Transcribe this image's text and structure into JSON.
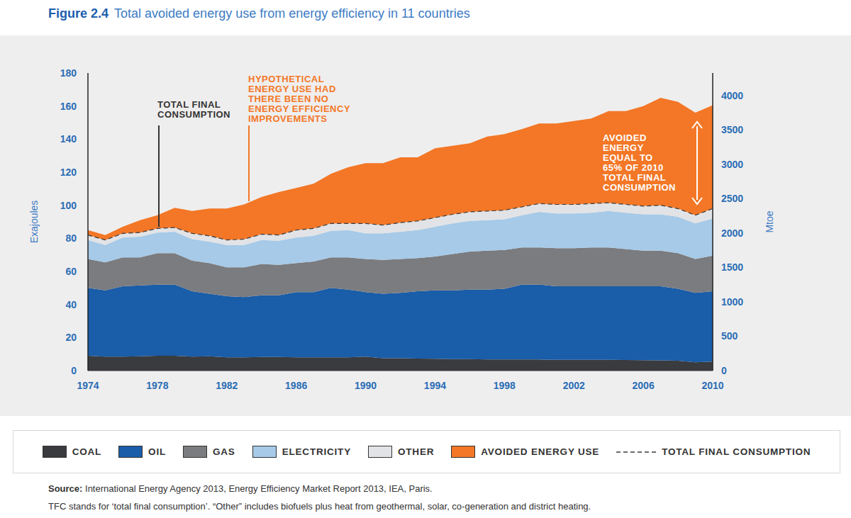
{
  "chart_data": {
    "type": "area",
    "stacked": true,
    "title": "Figure 2.4",
    "subtitle": "Total avoided energy use from energy efficiency in 11 countries",
    "x": [
      1974,
      1975,
      1976,
      1977,
      1978,
      1979,
      1980,
      1981,
      1982,
      1983,
      1984,
      1985,
      1986,
      1987,
      1988,
      1989,
      1990,
      1991,
      1992,
      1993,
      1994,
      1995,
      1996,
      1997,
      1998,
      1999,
      2000,
      2001,
      2002,
      2003,
      2004,
      2005,
      2006,
      2007,
      2008,
      2009,
      2010
    ],
    "xlim": [
      1974,
      2010
    ],
    "xticks": [
      1974,
      1978,
      1982,
      1986,
      1990,
      1994,
      1998,
      2002,
      2006,
      2010
    ],
    "ylabel": "Exajoules",
    "ylim": [
      0,
      180
    ],
    "yticks": [
      0,
      20,
      40,
      60,
      80,
      100,
      120,
      140,
      160,
      180
    ],
    "y2label": "Mtoe",
    "y2lim": [
      0,
      4330
    ],
    "y2ticks": [
      0,
      500,
      1000,
      1500,
      2000,
      2500,
      3000,
      3500,
      4000
    ],
    "grid": false,
    "legend": "bottom",
    "series": [
      {
        "name": "COAL",
        "type": "area",
        "color": "#3a3b3f",
        "values": [
          9,
          8.5,
          8.5,
          8.7,
          9,
          9,
          8.5,
          8.7,
          8,
          8,
          8.2,
          8.2,
          8,
          8,
          8,
          8,
          8.5,
          7.5,
          7.5,
          7.3,
          7.2,
          7,
          7,
          6.8,
          6.7,
          6.7,
          6.7,
          6.5,
          6.5,
          6.5,
          6.5,
          6.4,
          6.3,
          6.2,
          6,
          5,
          5.5
        ]
      },
      {
        "name": "OIL",
        "type": "area",
        "color": "#1a5da8",
        "values": [
          41,
          40,
          42.5,
          42.8,
          43,
          43,
          39.5,
          37.8,
          37,
          36.5,
          37.3,
          37.3,
          39.5,
          39.5,
          42,
          41,
          39,
          39,
          39.5,
          40.7,
          41.3,
          41.5,
          42,
          42.2,
          42.8,
          45.3,
          45.3,
          44.5,
          44.5,
          44.5,
          44.5,
          44.6,
          44.7,
          44.8,
          43.5,
          42,
          42.5
        ]
      },
      {
        "name": "GAS",
        "type": "area",
        "color": "#7b7c80",
        "values": [
          17.5,
          17,
          17.5,
          17,
          19,
          19,
          18.5,
          18.5,
          17.5,
          18,
          19,
          18.5,
          17.5,
          18.5,
          18.5,
          19.5,
          20,
          20.5,
          20.5,
          20,
          20.5,
          22,
          23,
          23.5,
          23.5,
          22.5,
          22.5,
          23,
          23,
          23.5,
          23.5,
          22.5,
          21.5,
          21.5,
          21.5,
          20.5,
          21.5
        ]
      },
      {
        "name": "ELECTRICITY",
        "type": "area",
        "color": "#a6cae8",
        "values": [
          11.5,
          10.5,
          12,
          12.5,
          12.5,
          13,
          13,
          13,
          13.5,
          13.5,
          14.5,
          14.5,
          15.5,
          15.5,
          16,
          16.5,
          15.5,
          16,
          16.5,
          17,
          18,
          18.5,
          18.5,
          18.5,
          18.5,
          19.5,
          21.5,
          21,
          21,
          21,
          22,
          22,
          22,
          22,
          22,
          21.5,
          22.5
        ]
      },
      {
        "name": "OTHER",
        "type": "area",
        "color": "#e2e3e6",
        "values": [
          3,
          3,
          2.5,
          2.5,
          2.5,
          2.5,
          3.5,
          3.5,
          3,
          3.5,
          3.5,
          3.5,
          4.5,
          4.5,
          4.5,
          4,
          6,
          5,
          5.5,
          5.5,
          5.5,
          5.5,
          5.5,
          5.5,
          5.5,
          5,
          5,
          5.5,
          5.5,
          5.5,
          5,
          5,
          5,
          5.5,
          5,
          5,
          6
        ]
      },
      {
        "name": "AVOIDED ENERGY USE",
        "type": "area",
        "color": "#f37726",
        "values": [
          3,
          3,
          4,
          7.5,
          8,
          12,
          13.5,
          16.5,
          19,
          21,
          22.5,
          26,
          25.5,
          27,
          30,
          34,
          36.5,
          37.5,
          39.5,
          38.5,
          42,
          41.5,
          41.5,
          45,
          46,
          47,
          48.5,
          49,
          50.5,
          51.5,
          55.5,
          56.5,
          60.5,
          65,
          64.5,
          62,
          62.5
        ]
      },
      {
        "name": "TOTAL FINAL CONSUMPTION",
        "type": "line",
        "line_style": "dashed",
        "color": "#3a3b3f",
        "values": [
          82,
          79,
          83,
          83.5,
          86,
          86.5,
          83,
          81.5,
          79,
          79.5,
          82.5,
          82,
          85,
          86,
          89,
          89,
          89,
          88,
          89.5,
          90.5,
          92.5,
          94.5,
          96,
          96.5,
          97,
          99,
          101,
          100.5,
          100.5,
          101,
          101.5,
          100.5,
          99.5,
          100,
          98,
          94,
          98
        ]
      }
    ],
    "annotations": [
      {
        "text": "TOTAL FINAL CONSUMPTION",
        "color": "#333333"
      },
      {
        "text": "HYPOTHETICAL ENERGY USE HAD THERE BEEN NO ENERGY EFFICIENCY IMPROVEMENTS",
        "color": "#f37726"
      },
      {
        "text": "AVOIDED ENERGY EQUAL TO 65% OF 2010 TOTAL FINAL CONSUMPTION",
        "color": "#ffffff"
      }
    ],
    "source": "Source: International Energy Agency 2013, Energy Efficiency Market Report 2013, IEA, Paris.",
    "note": "TFC stands for ‘total final consumption’. “Other” includes biofuels plus heat from geothermal, solar, co-generation and district heating."
  }
}
